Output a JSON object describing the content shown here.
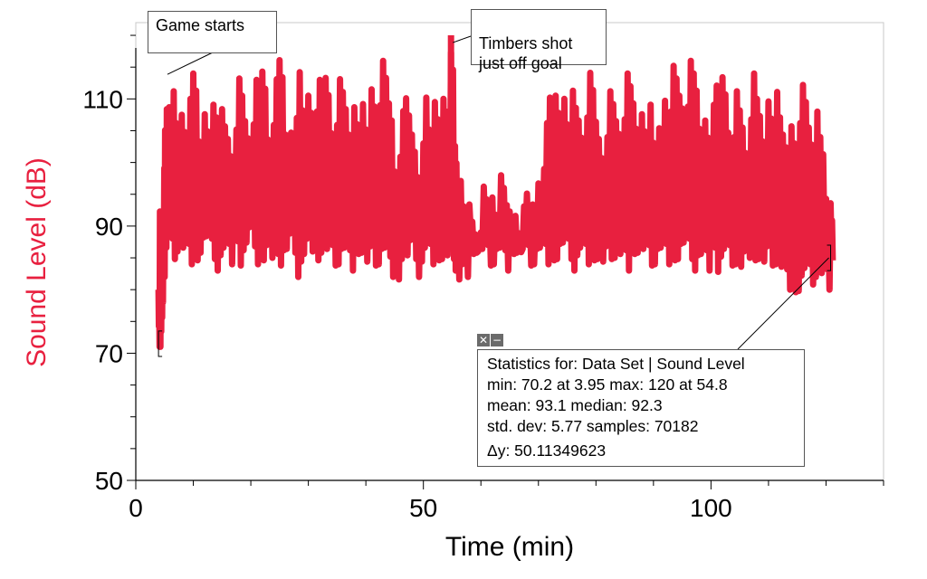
{
  "chart_data": {
    "type": "line",
    "title": "",
    "xlabel": "Time (min)",
    "ylabel": "Sound Level (dB)",
    "xlim": [
      0,
      130
    ],
    "ylim": [
      50,
      122
    ],
    "x_ticks": [
      0,
      50,
      100
    ],
    "y_ticks": [
      50,
      70,
      90,
      110
    ],
    "grid": false,
    "series_color": "#e8203f",
    "series": [
      {
        "x": [
          3.95,
          4.2,
          4.5,
          4.8,
          5.1,
          5.4,
          5.8,
          6.2,
          7,
          8,
          9,
          10,
          11,
          12,
          13,
          14,
          15,
          16,
          17,
          18,
          19,
          20,
          21,
          22,
          23,
          24,
          25,
          26,
          27,
          28,
          29,
          30,
          31,
          32,
          33,
          34,
          35,
          36,
          37,
          38,
          39,
          40,
          41,
          42,
          43,
          44,
          45,
          46,
          47,
          48,
          49,
          50,
          51,
          52,
          53,
          54,
          54.8,
          55.5,
          56,
          57,
          58,
          59,
          60,
          61,
          62,
          63,
          64,
          65,
          66,
          67,
          68,
          69,
          70,
          71,
          72,
          73,
          74,
          75,
          76,
          77,
          78,
          79,
          80,
          81,
          82,
          83,
          84,
          85,
          86,
          87,
          88,
          89,
          90,
          91,
          92,
          93,
          94,
          95,
          96,
          97,
          98,
          99,
          100,
          101,
          102,
          103,
          104,
          105,
          106,
          107,
          108,
          109,
          110,
          111,
          112,
          113,
          114,
          115,
          116,
          117,
          118,
          119,
          120,
          120.8
        ],
        "y_max": [
          80,
          95,
          93,
          100,
          106,
          112,
          115,
          113,
          108,
          112,
          110,
          114,
          106,
          113,
          110,
          108,
          112,
          110,
          107,
          115,
          111,
          106,
          113,
          117,
          109,
          114,
          117,
          108,
          111,
          116,
          110,
          115,
          108,
          113,
          116,
          110,
          114,
          112,
          108,
          115,
          111,
          107,
          116,
          109,
          116,
          112,
          104,
          109,
          111,
          108,
          104,
          112,
          107,
          114,
          110,
          108,
          120,
          108,
          98,
          94,
          97,
          95,
          98,
          96,
          99,
          98,
          96,
          95,
          97,
          94,
          96,
          97,
          103,
          108,
          112,
          115,
          110,
          106,
          114,
          112,
          108,
          115,
          110,
          107,
          113,
          111,
          109,
          114,
          112,
          108,
          113,
          110,
          104,
          109,
          116,
          117,
          115,
          113,
          116,
          114,
          108,
          112,
          110,
          113,
          117,
          111,
          113,
          110,
          106,
          114,
          110,
          106,
          115,
          112,
          108,
          106,
          112,
          108,
          114,
          110,
          108,
          104,
          97,
          99
        ],
        "y_min": [
          70.2,
          71,
          74,
          82,
          85,
          88,
          86,
          84,
          86,
          85,
          84,
          83,
          85,
          86,
          84,
          83,
          85,
          84,
          86,
          83,
          85,
          86,
          84,
          83,
          85,
          84,
          83,
          84,
          85,
          82,
          84,
          86,
          83,
          85,
          84,
          83,
          84,
          85,
          83,
          84,
          85,
          82,
          83,
          84,
          85,
          82,
          80,
          84,
          83,
          84,
          82,
          85,
          84,
          83,
          84,
          83,
          84,
          83,
          80,
          82,
          84,
          85,
          84,
          83,
          84,
          85,
          83,
          84,
          85,
          84,
          83,
          84,
          85,
          84,
          83,
          84,
          85,
          84,
          83,
          85,
          84,
          83,
          84,
          82,
          84,
          85,
          84,
          83,
          84,
          85,
          84,
          83,
          84,
          85,
          84,
          83,
          84,
          85,
          84,
          83,
          84,
          83,
          85,
          82,
          84,
          83,
          84,
          82,
          85,
          83,
          84,
          82,
          83,
          84,
          82,
          80,
          78,
          79,
          81,
          80,
          82,
          81,
          80,
          83
        ]
      }
    ],
    "annotations": [
      {
        "text": "Game starts",
        "target_x": 5.5,
        "target_y": 115
      },
      {
        "text": "Timbers shot\njust off goal",
        "target_x": 54.8,
        "target_y": 120
      }
    ],
    "stats_box": {
      "line1": "Statistics for: Data Set | Sound Level",
      "line2": "min: 70.2 at 3.95 max: 120 at 54.8",
      "line3": "mean: 93.1 median: 92.3",
      "line4": "std. dev: 5.77 samples: 70182",
      "line5": "Δy: 50.11349623",
      "range_start_x": 3.95,
      "range_end_x": 120.8
    }
  }
}
